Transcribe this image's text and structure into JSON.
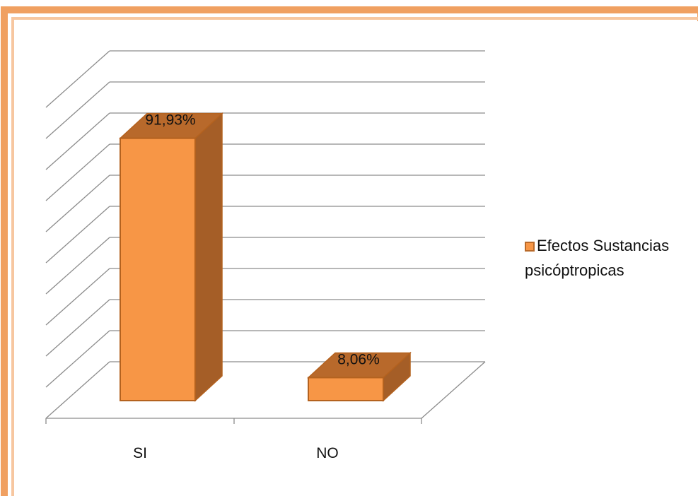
{
  "chart_data": {
    "type": "bar",
    "three_d": true,
    "categories": [
      "SI",
      "NO"
    ],
    "series": [
      {
        "name": "Efectos Sustancias psicóptropicas",
        "values": [
          91.93,
          8.06
        ]
      }
    ],
    "data_labels": [
      "91,93%",
      "8,06%"
    ],
    "ylim": [
      0,
      100
    ],
    "grid": true,
    "legend_position": "right"
  },
  "colors": {
    "bar_front": "#f79646",
    "bar_side": "#a55e27",
    "bar_top": "#b8692b",
    "bar_edge": "#b4621f",
    "grid": "#8c8c8c",
    "frame_outer": "#f0a061",
    "frame_inner": "#f7c7a0"
  }
}
